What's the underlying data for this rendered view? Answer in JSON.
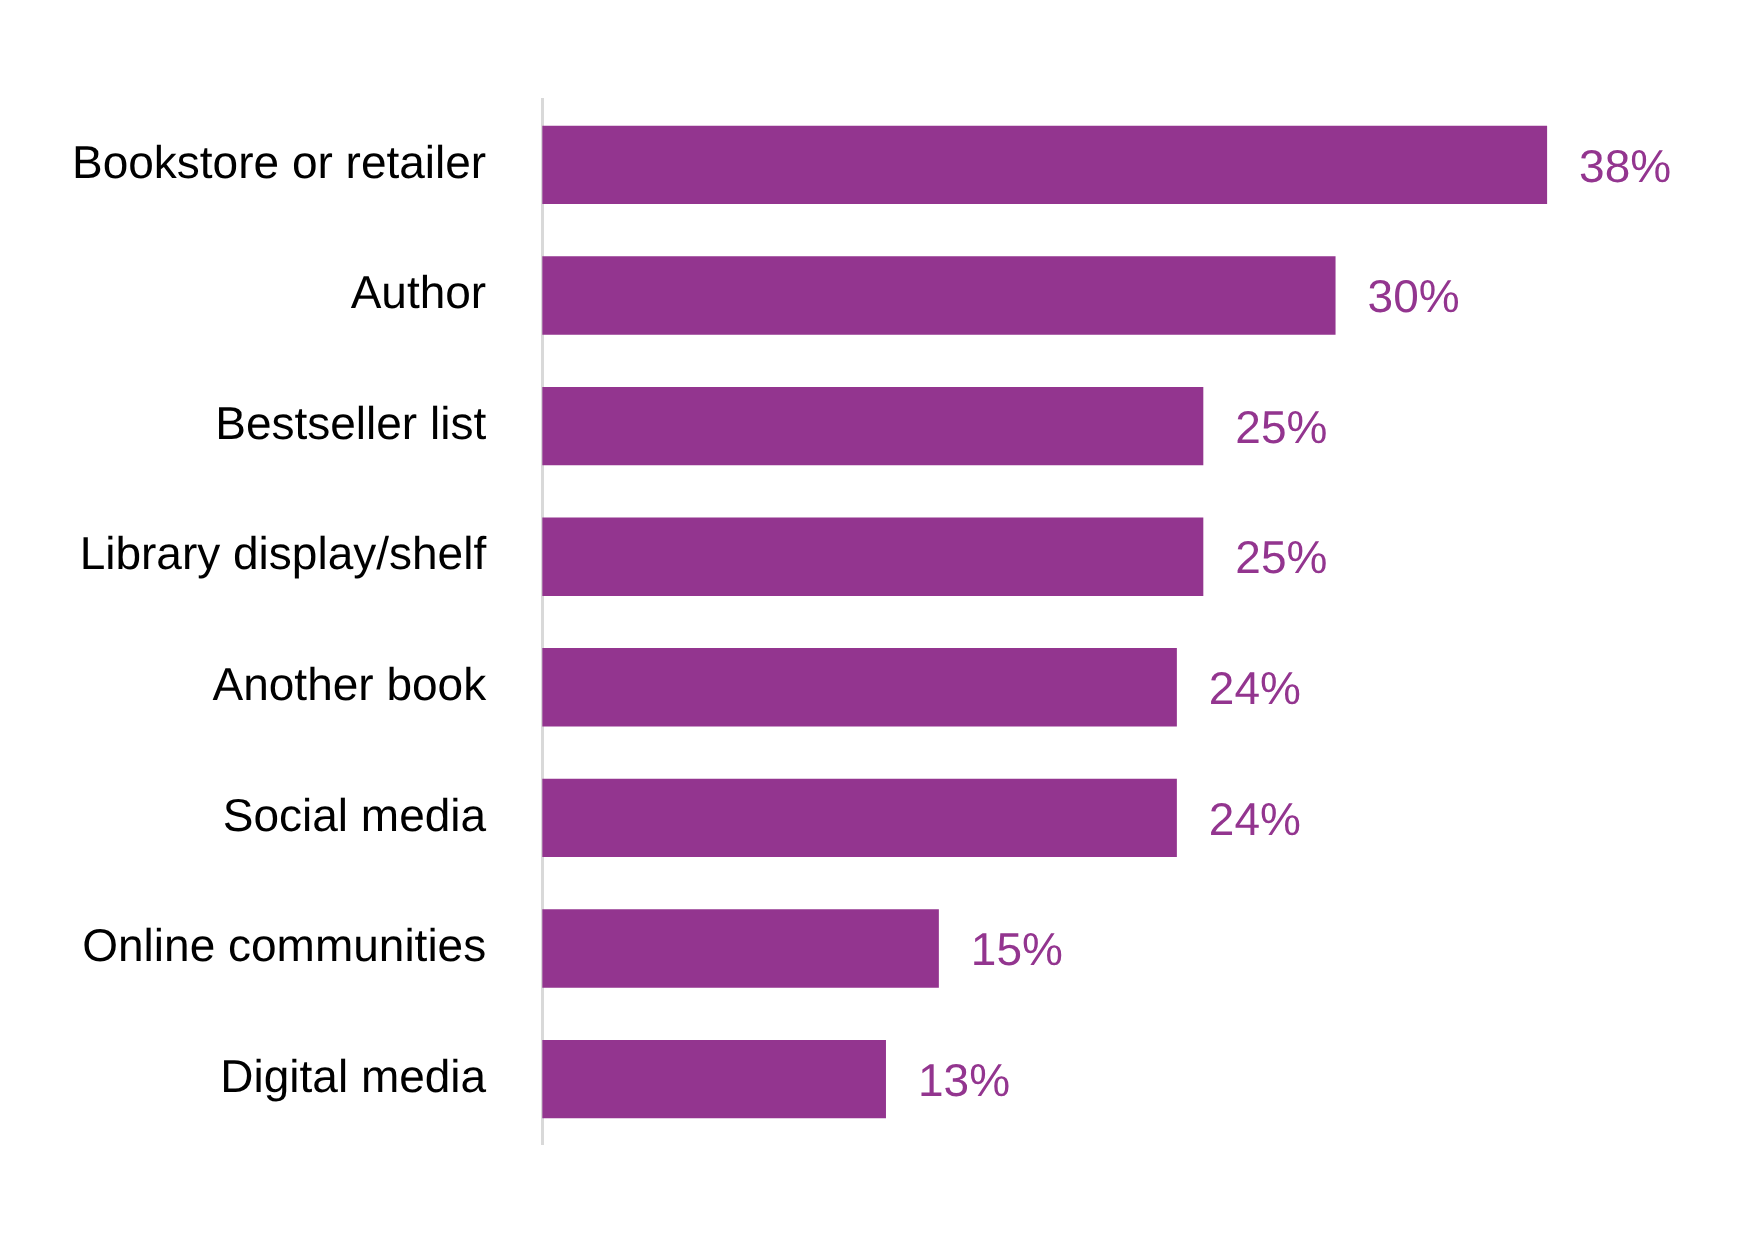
{
  "chart_data": {
    "type": "bar",
    "orientation": "horizontal",
    "categories": [
      "Bookstore or retailer",
      "Author",
      "Bestseller list",
      "Library display/shelf",
      "Another book",
      "Social media",
      "Online communities",
      "Digital media"
    ],
    "values": [
      38,
      30,
      25,
      25,
      24,
      24,
      15,
      13
    ],
    "value_labels": [
      "38%",
      "30%",
      "25%",
      "25%",
      "24%",
      "24%",
      "15%",
      "13%"
    ],
    "color": "#93358f",
    "tick_labels": "y"
  }
}
